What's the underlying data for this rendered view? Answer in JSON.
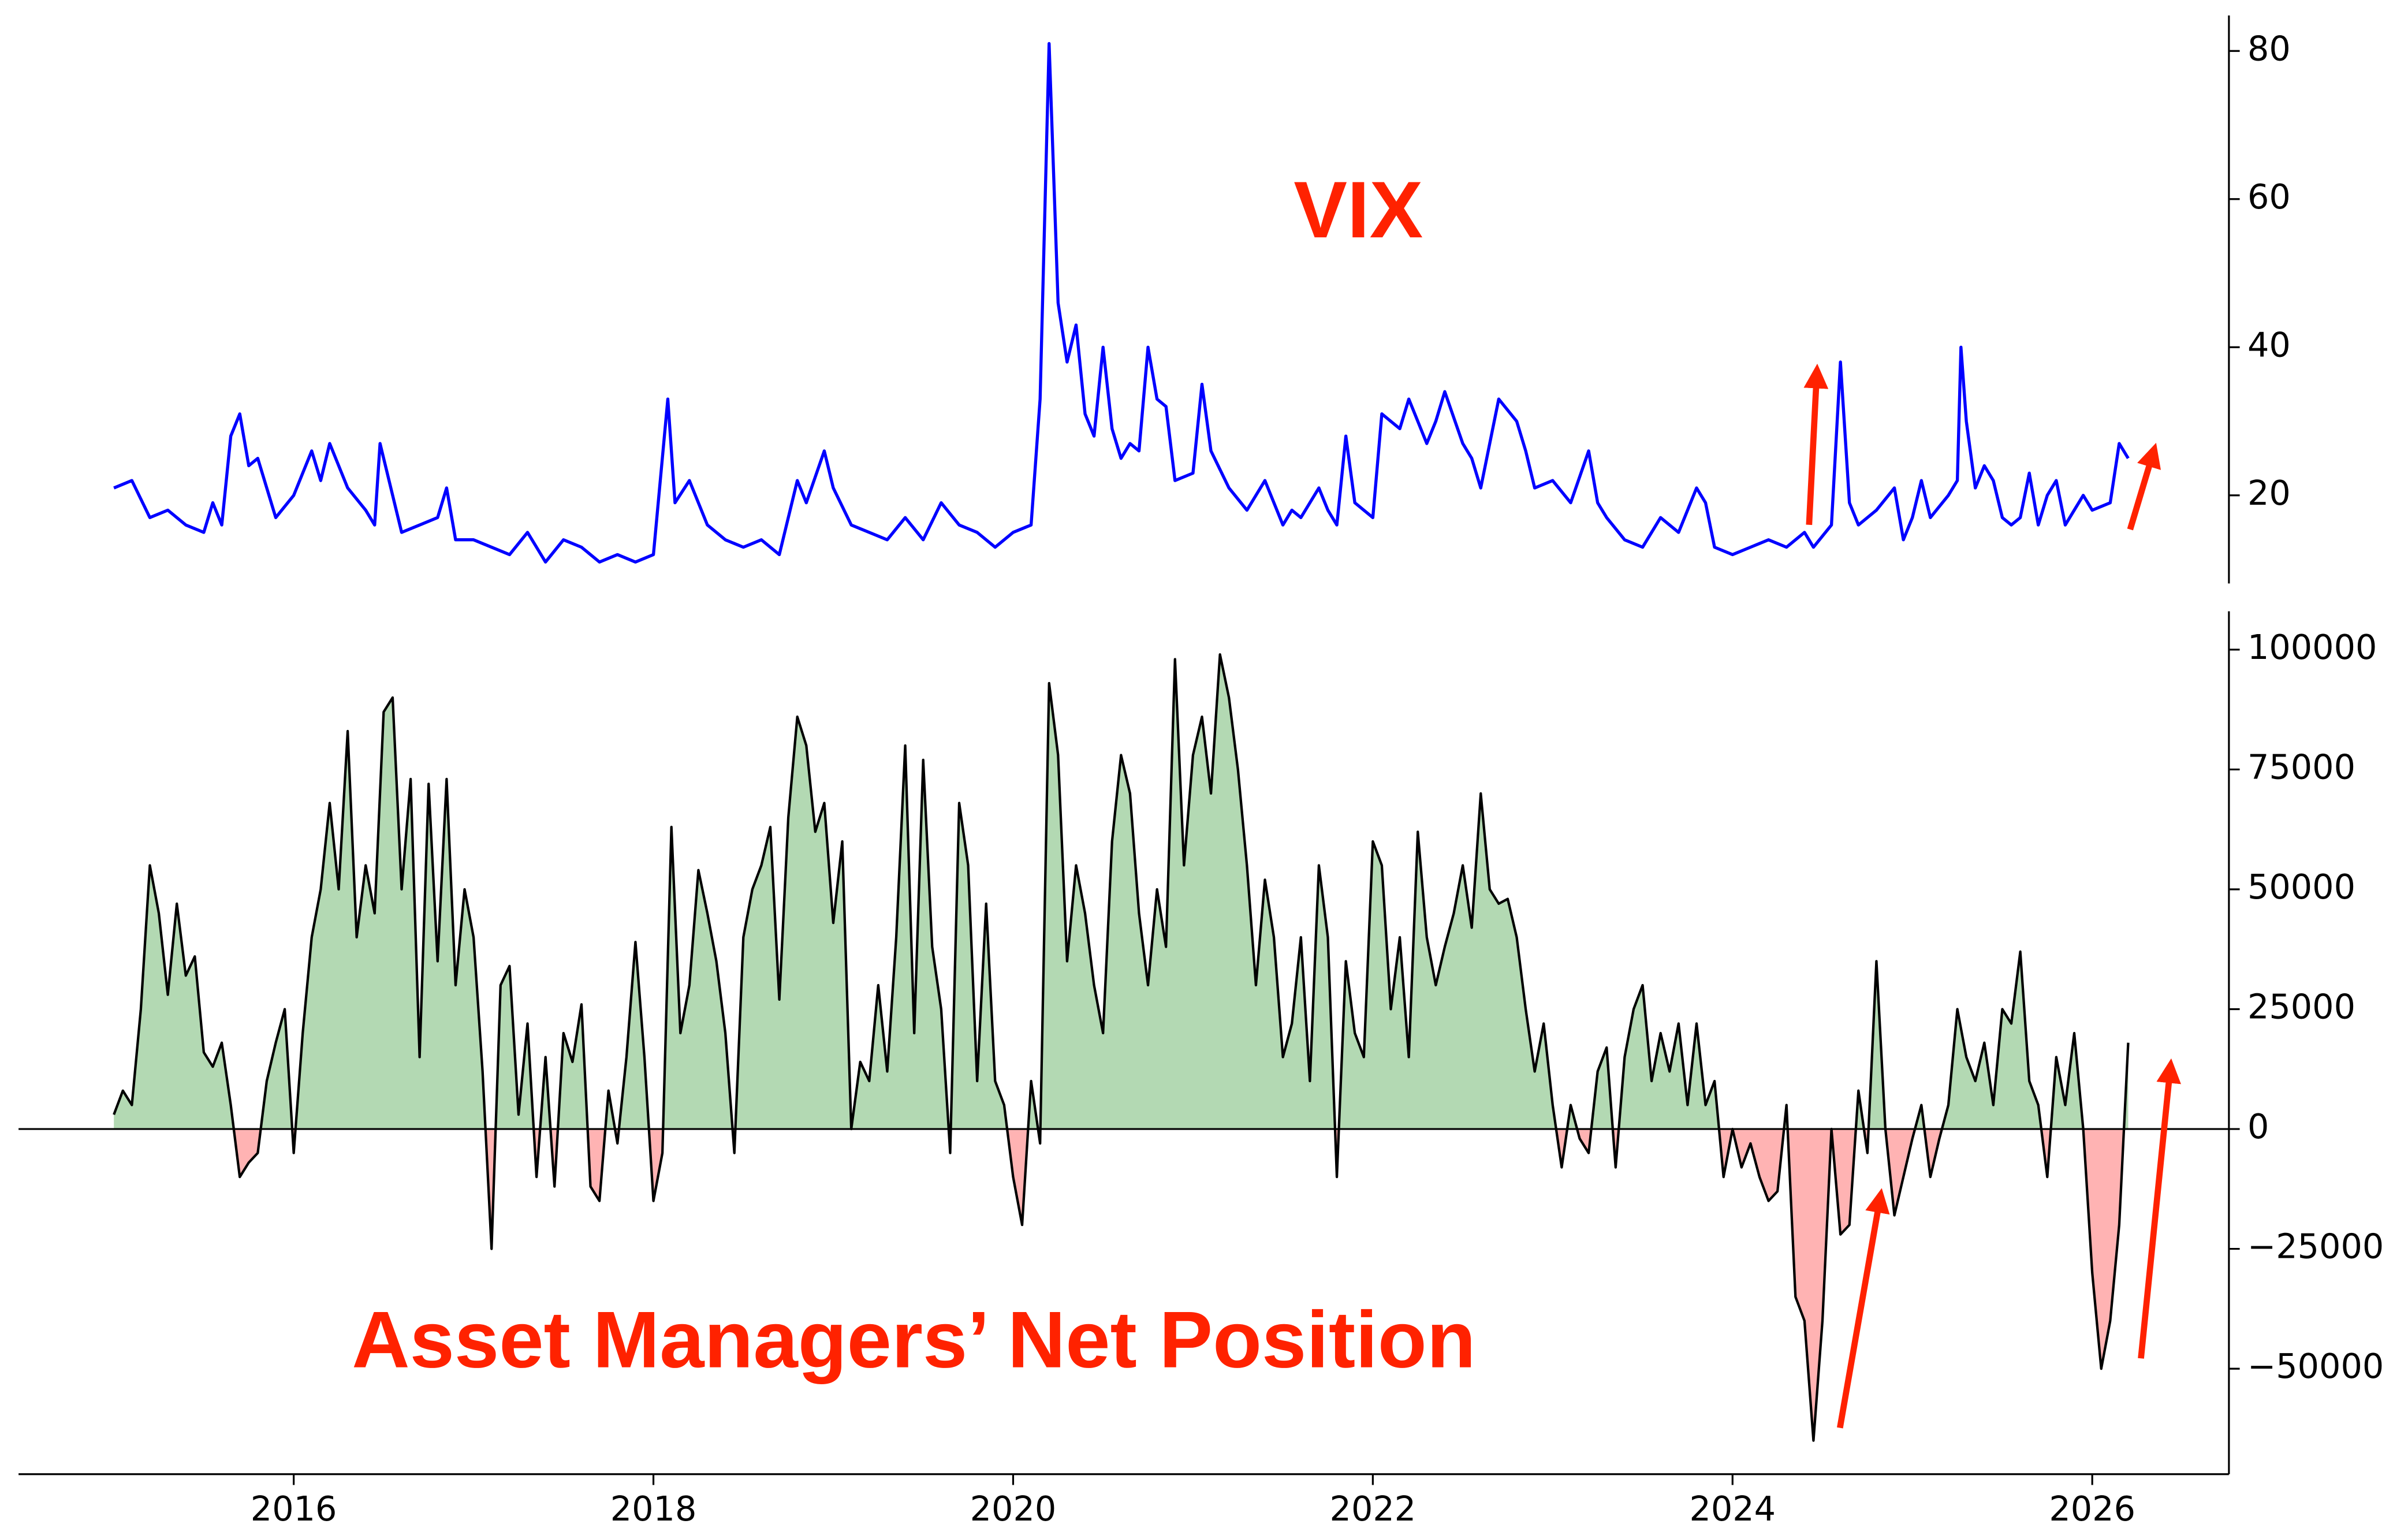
{
  "chart_data": [
    {
      "type": "line",
      "annotation": "VIX",
      "annotation_color": "#ff2200",
      "color": "#0000ff",
      "xlim": [
        2014.47,
        2026.76
      ],
      "ylim": [
        8.1,
        84.8
      ],
      "yticks": [
        20,
        40,
        60,
        80
      ],
      "y_axis_side": "right",
      "x": [
        2015.0,
        2015.1,
        2015.2,
        2015.3,
        2015.4,
        2015.5,
        2015.55,
        2015.6,
        2015.65,
        2015.7,
        2015.75,
        2015.8,
        2015.9,
        2016.0,
        2016.05,
        2016.1,
        2016.15,
        2016.2,
        2016.3,
        2016.4,
        2016.45,
        2016.48,
        2016.6,
        2016.7,
        2016.8,
        2016.85,
        2016.9,
        2017.0,
        2017.2,
        2017.3,
        2017.4,
        2017.5,
        2017.6,
        2017.7,
        2017.8,
        2017.9,
        2018.0,
        2018.08,
        2018.12,
        2018.2,
        2018.3,
        2018.4,
        2018.5,
        2018.6,
        2018.7,
        2018.8,
        2018.85,
        2018.95,
        2019.0,
        2019.1,
        2019.3,
        2019.4,
        2019.5,
        2019.6,
        2019.7,
        2019.8,
        2019.9,
        2020.0,
        2020.1,
        2020.15,
        2020.2,
        2020.25,
        2020.3,
        2020.35,
        2020.4,
        2020.45,
        2020.5,
        2020.55,
        2020.6,
        2020.65,
        2020.7,
        2020.75,
        2020.8,
        2020.85,
        2020.9,
        2021.0,
        2021.05,
        2021.1,
        2021.2,
        2021.3,
        2021.4,
        2021.5,
        2021.55,
        2021.6,
        2021.7,
        2021.75,
        2021.8,
        2021.85,
        2021.9,
        2022.0,
        2022.05,
        2022.15,
        2022.2,
        2022.3,
        2022.35,
        2022.4,
        2022.5,
        2022.55,
        2022.6,
        2022.65,
        2022.7,
        2022.8,
        2022.85,
        2022.9,
        2023.0,
        2023.1,
        2023.2,
        2023.25,
        2023.3,
        2023.4,
        2023.5,
        2023.6,
        2023.7,
        2023.8,
        2023.85,
        2023.9,
        2024.0,
        2024.1,
        2024.2,
        2024.3,
        2024.4,
        2024.45,
        2024.55,
        2024.6,
        2024.65,
        2024.7,
        2024.8,
        2024.9,
        2024.95,
        2025.0,
        2025.05,
        2025.1,
        2025.2,
        2025.25,
        2025.27,
        2025.3,
        2025.35,
        2025.4,
        2025.45,
        2025.5,
        2025.55,
        2025.6,
        2025.65,
        2025.7,
        2025.75,
        2025.8,
        2025.85,
        2025.9,
        2025.95,
        2026.0,
        2026.1,
        2026.15,
        2026.2
      ],
      "values": [
        21,
        22,
        17,
        18,
        16,
        15,
        19,
        16,
        28,
        31,
        24,
        25,
        17,
        20,
        23,
        26,
        22,
        27,
        21,
        18,
        16,
        27,
        15,
        16,
        17,
        21,
        14,
        14,
        12,
        15,
        11,
        14,
        13,
        11,
        12,
        11,
        12,
        33,
        19,
        22,
        16,
        14,
        13,
        14,
        12,
        22,
        19,
        26,
        21,
        16,
        14,
        17,
        14,
        19,
        16,
        15,
        13,
        15,
        16,
        33,
        81,
        46,
        38,
        43,
        31,
        28,
        40,
        29,
        25,
        27,
        26,
        40,
        33,
        32,
        22,
        23,
        35,
        26,
        21,
        18,
        22,
        16,
        18,
        17,
        21,
        18,
        16,
        28,
        19,
        17,
        31,
        29,
        33,
        27,
        30,
        34,
        27,
        25,
        21,
        27,
        33,
        30,
        26,
        21,
        22,
        19,
        26,
        19,
        17,
        14,
        13,
        17,
        15,
        21,
        19,
        13,
        12,
        13,
        14,
        13,
        15,
        13,
        16,
        38,
        19,
        16,
        18,
        21,
        14,
        17,
        22,
        17,
        20,
        22,
        40,
        30,
        21,
        24,
        22,
        17,
        16,
        17,
        23,
        16,
        20,
        22,
        16,
        18,
        20,
        18,
        19,
        27,
        25
      ]
    },
    {
      "type": "area",
      "annotation": "Asset Managers’ Net Position",
      "annotation_color": "#ff2200",
      "color": "#000000",
      "fill_positive": "#b3d9b3",
      "fill_negative": "#ffb3b3",
      "zero_line": true,
      "xlim": [
        2014.47,
        2026.76
      ],
      "xticks": [
        2016,
        2018,
        2020,
        2022,
        2024,
        2026
      ],
      "ylim": [
        -72000,
        108000
      ],
      "y_axis_side": "right",
      "yticks": [
        {
          "value": -50000,
          "label": "−50000"
        },
        {
          "value": -25000,
          "label": "−25000"
        },
        0,
        25000,
        50000,
        75000,
        100000
      ],
      "x": [
        2015.0,
        2015.05,
        2015.1,
        2015.15,
        2015.2,
        2015.25,
        2015.3,
        2015.35,
        2015.4,
        2015.45,
        2015.5,
        2015.55,
        2015.6,
        2015.65,
        2015.7,
        2015.75,
        2015.8,
        2015.85,
        2015.9,
        2015.95,
        2016.0,
        2016.05,
        2016.1,
        2016.15,
        2016.2,
        2016.25,
        2016.3,
        2016.35,
        2016.4,
        2016.45,
        2016.5,
        2016.55,
        2016.6,
        2016.65,
        2016.7,
        2016.75,
        2016.8,
        2016.85,
        2016.9,
        2016.95,
        2017.0,
        2017.05,
        2017.1,
        2017.15,
        2017.2,
        2017.25,
        2017.3,
        2017.35,
        2017.4,
        2017.45,
        2017.5,
        2017.55,
        2017.6,
        2017.65,
        2017.7,
        2017.75,
        2017.8,
        2017.85,
        2017.9,
        2017.95,
        2018.0,
        2018.05,
        2018.1,
        2018.15,
        2018.2,
        2018.25,
        2018.3,
        2018.35,
        2018.4,
        2018.45,
        2018.5,
        2018.55,
        2018.6,
        2018.65,
        2018.7,
        2018.75,
        2018.8,
        2018.85,
        2018.9,
        2018.95,
        2019.0,
        2019.05,
        2019.1,
        2019.15,
        2019.2,
        2019.25,
        2019.3,
        2019.35,
        2019.4,
        2019.45,
        2019.5,
        2019.55,
        2019.6,
        2019.65,
        2019.7,
        2019.75,
        2019.8,
        2019.85,
        2019.9,
        2019.95,
        2020.0,
        2020.05,
        2020.1,
        2020.15,
        2020.2,
        2020.25,
        2020.3,
        2020.35,
        2020.4,
        2020.45,
        2020.5,
        2020.55,
        2020.6,
        2020.65,
        2020.7,
        2020.75,
        2020.8,
        2020.85,
        2020.9,
        2020.95,
        2021.0,
        2021.05,
        2021.1,
        2021.15,
        2021.2,
        2021.25,
        2021.3,
        2021.35,
        2021.4,
        2021.45,
        2021.5,
        2021.55,
        2021.6,
        2021.65,
        2021.7,
        2021.75,
        2021.8,
        2021.85,
        2021.9,
        2021.95,
        2022.0,
        2022.05,
        2022.1,
        2022.15,
        2022.2,
        2022.25,
        2022.3,
        2022.35,
        2022.4,
        2022.45,
        2022.5,
        2022.55,
        2022.6,
        2022.65,
        2022.7,
        2022.75,
        2022.8,
        2022.85,
        2022.9,
        2022.95,
        2023.0,
        2023.05,
        2023.1,
        2023.15,
        2023.2,
        2023.25,
        2023.3,
        2023.35,
        2023.4,
        2023.45,
        2023.5,
        2023.55,
        2023.6,
        2023.65,
        2023.7,
        2023.75,
        2023.8,
        2023.85,
        2023.9,
        2023.95,
        2024.0,
        2024.05,
        2024.1,
        2024.15,
        2024.2,
        2024.25,
        2024.3,
        2024.35,
        2024.4,
        2024.45,
        2024.5,
        2024.55,
        2024.6,
        2024.65,
        2024.7,
        2024.75,
        2024.8,
        2024.85,
        2024.9,
        2024.95,
        2025.0,
        2025.05,
        2025.1,
        2025.15,
        2025.2,
        2025.25,
        2025.3,
        2025.35,
        2025.4,
        2025.45,
        2025.5,
        2025.55,
        2025.6,
        2025.65,
        2025.7,
        2025.75,
        2025.8,
        2025.85,
        2025.9,
        2025.95,
        2026.0,
        2026.05,
        2026.1,
        2026.15,
        2026.2
      ],
      "values": [
        3000,
        8000,
        5000,
        25000,
        55000,
        45000,
        28000,
        47000,
        32000,
        36000,
        16000,
        13000,
        18000,
        5000,
        -10000,
        -7000,
        -5000,
        10000,
        18000,
        25000,
        -5000,
        20000,
        40000,
        50000,
        68000,
        50000,
        83000,
        40000,
        55000,
        45000,
        87000,
        90000,
        50000,
        73000,
        15000,
        72000,
        35000,
        73000,
        30000,
        50000,
        40000,
        12000,
        -25000,
        30000,
        34000,
        3000,
        22000,
        -10000,
        15000,
        -12000,
        20000,
        14000,
        26000,
        -12000,
        -15000,
        8000,
        -3000,
        15000,
        39000,
        15000,
        -15000,
        -5000,
        63000,
        20000,
        30000,
        54000,
        45000,
        35000,
        20000,
        -5000,
        40000,
        50000,
        55000,
        63000,
        27000,
        65000,
        86000,
        80000,
        62000,
        68000,
        43000,
        60000,
        0,
        14000,
        10000,
        30000,
        12000,
        40000,
        80000,
        20000,
        77000,
        38000,
        25000,
        -5000,
        68000,
        55000,
        10000,
        47000,
        10000,
        5000,
        -10000,
        -20000,
        10000,
        -3000,
        93000,
        78000,
        35000,
        55000,
        45000,
        30000,
        20000,
        60000,
        78000,
        70000,
        45000,
        30000,
        50000,
        38000,
        98000,
        55000,
        78000,
        86000,
        70000,
        99000,
        90000,
        75000,
        55000,
        30000,
        52000,
        40000,
        15000,
        22000,
        40000,
        10000,
        55000,
        40000,
        -10000,
        35000,
        20000,
        15000,
        60000,
        55000,
        25000,
        40000,
        15000,
        62000,
        40000,
        30000,
        38000,
        45000,
        55000,
        42000,
        70000,
        50000,
        47000,
        48000,
        40000,
        25000,
        12000,
        22000,
        5000,
        -8000,
        5000,
        -2000,
        -5000,
        12000,
        17000,
        -8000,
        15000,
        25000,
        30000,
        10000,
        20000,
        12000,
        22000,
        5000,
        22000,
        5000,
        10000,
        -10000,
        0,
        -8000,
        -3000,
        -10000,
        -15000,
        -13000,
        5000,
        -35000,
        -40000,
        -65000,
        -40000,
        0,
        -22000,
        -20000,
        8000,
        -5000,
        35000,
        0,
        -18000,
        -10000,
        -2000,
        5000,
        -10000,
        -2000,
        5000,
        25000,
        15000,
        10000,
        18000,
        5000,
        25000,
        22000,
        37000,
        10000,
        5000,
        -10000,
        15000,
        5000,
        20000,
        0,
        -30000,
        -50000,
        -40000,
        -20000,
        18000
      ]
    }
  ]
}
